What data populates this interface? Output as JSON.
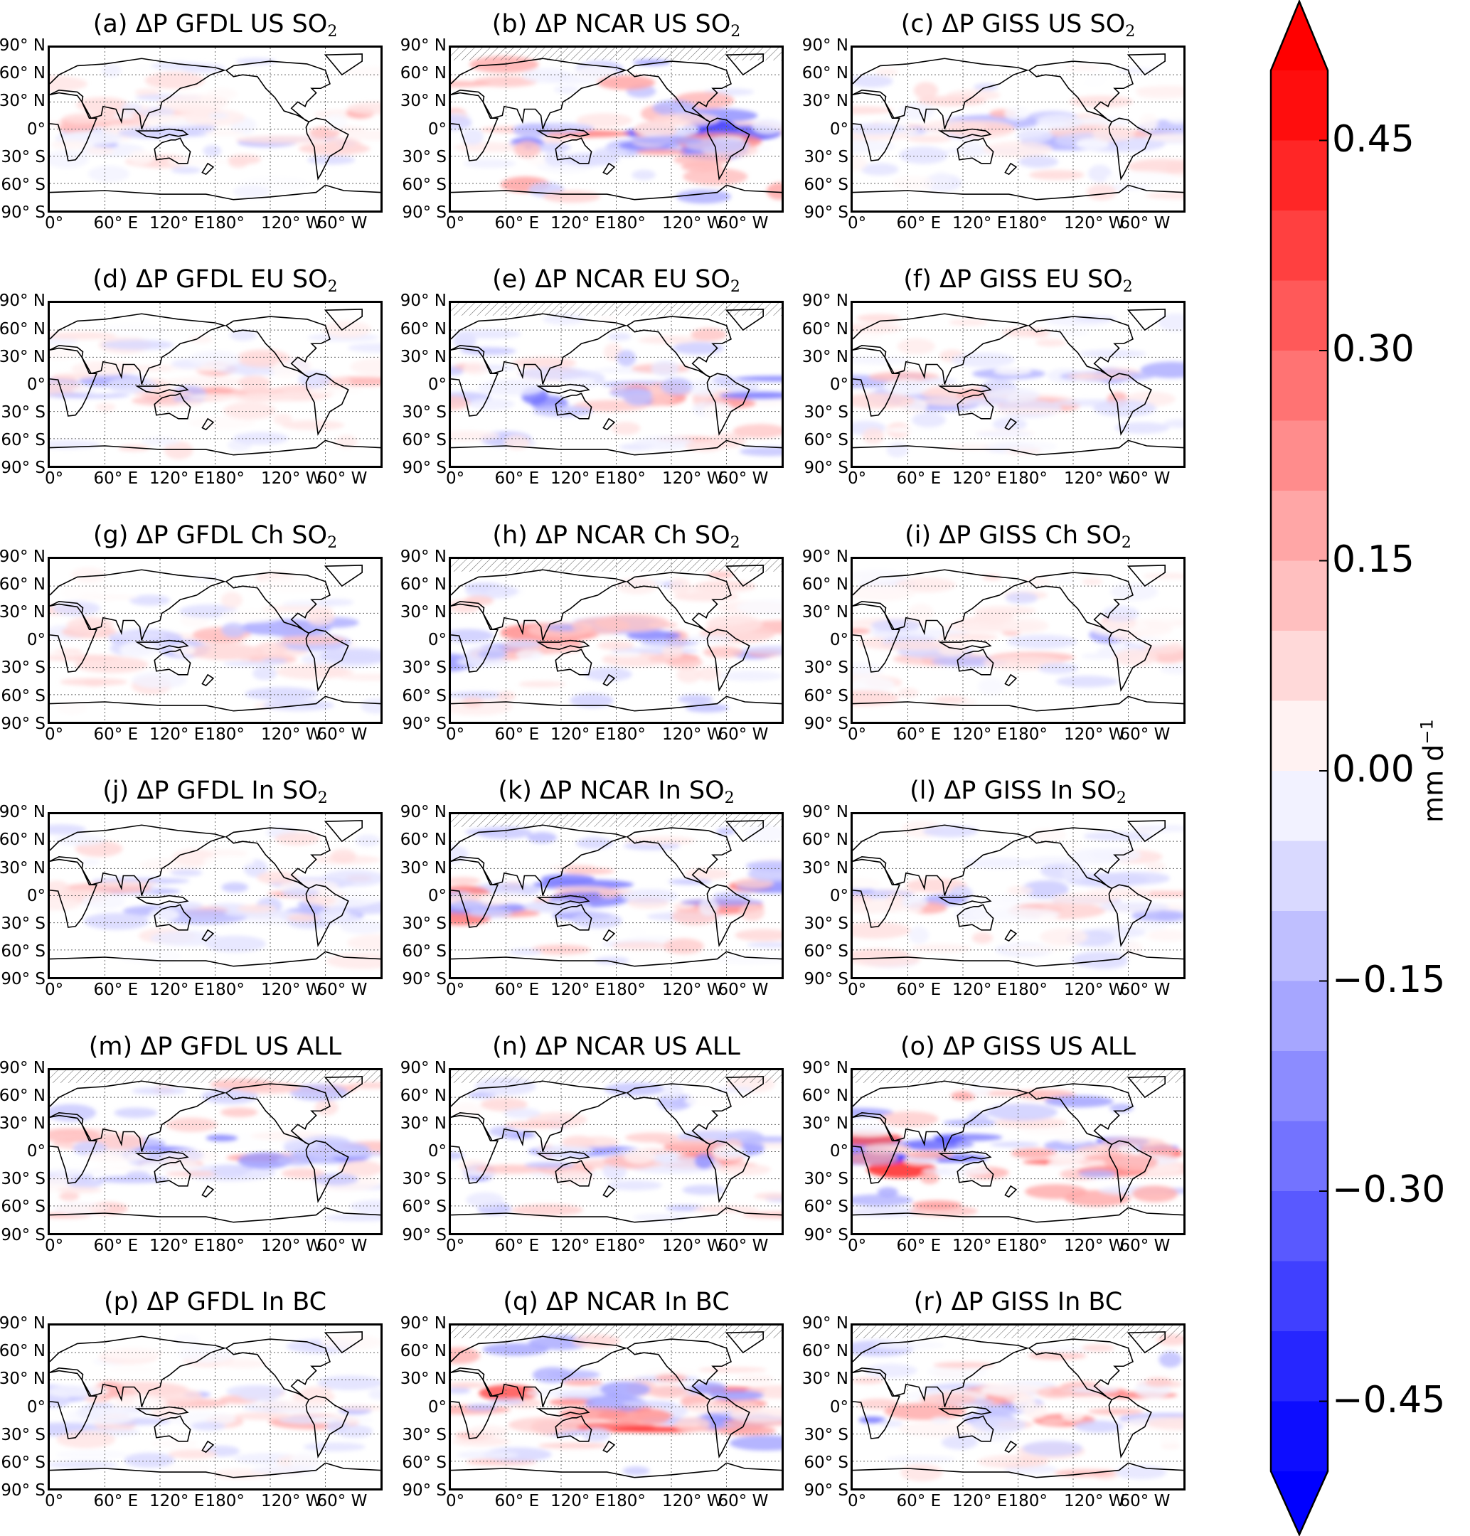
{
  "figure": {
    "panels": [
      {
        "title": "(a) ΔP GFDL US SO",
        "sub": "2",
        "model": "GFDL",
        "pattern": 1
      },
      {
        "title": "(b) ΔP NCAR US SO",
        "sub": "2",
        "model": "NCAR",
        "pattern": 3
      },
      {
        "title": "(c) ΔP GISS US SO",
        "sub": "2",
        "model": "GISS",
        "pattern": 1
      },
      {
        "title": "(d) ΔP GFDL EU SO",
        "sub": "2",
        "model": "GFDL",
        "pattern": 1
      },
      {
        "title": "(e) ΔP NCAR EU SO",
        "sub": "2",
        "model": "NCAR",
        "pattern": 2
      },
      {
        "title": "(f) ΔP GISS EU SO",
        "sub": "2",
        "model": "GISS",
        "pattern": 1
      },
      {
        "title": "(g) ΔP GFDL Ch SO",
        "sub": "2",
        "model": "GFDL",
        "pattern": 1
      },
      {
        "title": "(h) ΔP NCAR Ch SO",
        "sub": "2",
        "model": "NCAR",
        "pattern": 2
      },
      {
        "title": "(i) ΔP GISS Ch SO",
        "sub": "2",
        "model": "GISS",
        "pattern": 1
      },
      {
        "title": "(j) ΔP GFDL In SO",
        "sub": "2",
        "model": "GFDL",
        "pattern": 1
      },
      {
        "title": "(k) ΔP NCAR In SO",
        "sub": "2",
        "model": "NCAR",
        "pattern": 2
      },
      {
        "title": "(l) ΔP GISS In SO",
        "sub": "2",
        "model": "GISS",
        "pattern": 1
      },
      {
        "title": "(m) ΔP GFDL US ALL",
        "sub": "",
        "model": "GFDL",
        "pattern": 2
      },
      {
        "title": "(n) ΔP NCAR US ALL",
        "sub": "",
        "model": "NCAR",
        "pattern": 2
      },
      {
        "title": "(o) ΔP GISS US ALL",
        "sub": "",
        "model": "GISS",
        "pattern": 3
      },
      {
        "title": "(p) ΔP GFDL In BC",
        "sub": "",
        "model": "GFDL",
        "pattern": 1
      },
      {
        "title": "(q) ΔP NCAR In BC",
        "sub": "",
        "model": "NCAR",
        "pattern": 3
      },
      {
        "title": "(r) ΔP GISS In BC",
        "sub": "",
        "model": "GISS",
        "pattern": 2
      }
    ],
    "y_ticks": [
      "90° N",
      "60° N",
      "30° N",
      "0°",
      "30° S",
      "60° S",
      "90° S"
    ],
    "x_ticks": [
      "0°",
      "60° E",
      "120° E",
      "180°",
      "120° W",
      "60°  W"
    ],
    "colorbar": {
      "ticks": [
        "0.45",
        "0.30",
        "0.15",
        "0.00",
        "−0.15",
        "−0.30",
        "−0.45"
      ],
      "tick_values": [
        0.45,
        0.3,
        0.15,
        0.0,
        -0.15,
        -0.3,
        -0.45
      ],
      "range": [
        -0.5,
        0.5
      ],
      "step": 0.05,
      "extend": "both",
      "unit": "mm d",
      "unit_exponent": "−1",
      "colors": {
        "max": "#ff0000",
        "mid": "#ffffff",
        "min": "#0000ff"
      }
    }
  }
}
